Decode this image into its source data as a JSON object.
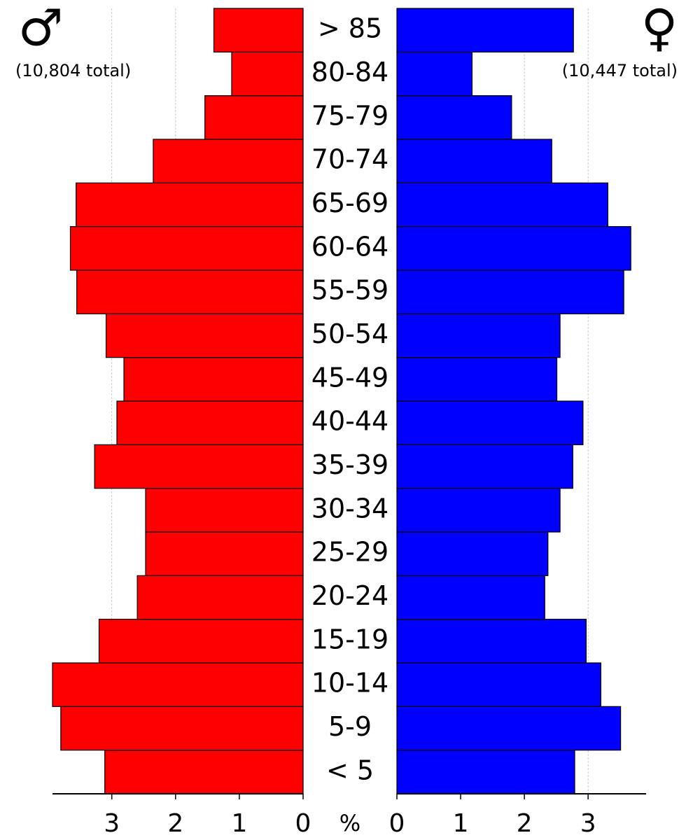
{
  "chart_data": {
    "type": "pyramid",
    "categories": [
      "< 5",
      "5-9",
      "10-14",
      "15-19",
      "20-24",
      "25-29",
      "30-34",
      "35-39",
      "40-44",
      "45-49",
      "50-54",
      "55-59",
      "60-64",
      "65-69",
      "70-74",
      "75-79",
      "80-84",
      "> 85"
    ],
    "xlabel": "%",
    "grid": true,
    "series": [
      {
        "name": "♂",
        "subtitle": "(10,804 total)",
        "color": "#ff0000",
        "side": "left",
        "xlim": [
          0,
          3.93
        ],
        "xticks": [
          0,
          1,
          2,
          3
        ],
        "values": [
          3.11,
          3.8,
          3.93,
          3.2,
          2.6,
          2.47,
          2.47,
          3.27,
          2.92,
          2.81,
          3.09,
          3.55,
          3.65,
          3.56,
          2.35,
          1.54,
          1.12,
          1.4
        ]
      },
      {
        "name": "♀",
        "subtitle": "(10,447 total)",
        "color": "#0000ff",
        "side": "right",
        "xlim": [
          0,
          3.91
        ],
        "xticks": [
          0,
          1,
          2,
          3
        ],
        "values": [
          2.79,
          3.51,
          3.2,
          2.97,
          2.32,
          2.37,
          2.56,
          2.76,
          2.92,
          2.51,
          2.56,
          3.56,
          3.67,
          3.31,
          2.43,
          1.8,
          1.18,
          2.77
        ]
      }
    ]
  }
}
